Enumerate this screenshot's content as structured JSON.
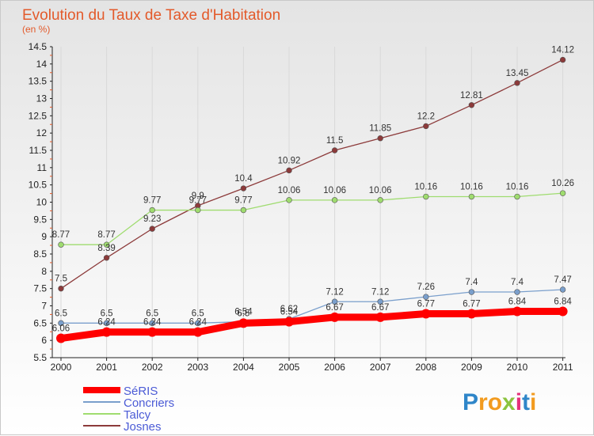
{
  "chart_data": {
    "type": "line",
    "title": "Evolution du Taux de Taxe d'Habitation",
    "subtitle": "(en %)",
    "xlabel": "",
    "ylabel": "",
    "x": [
      "2000",
      "2001",
      "2002",
      "2003",
      "2004",
      "2005",
      "2006",
      "2007",
      "2008",
      "2009",
      "2010",
      "2011"
    ],
    "ylim": [
      5.5,
      14.5
    ],
    "yticks": [
      "5.5",
      "6",
      "6.5",
      "7",
      "7.5",
      "8",
      "8.5",
      "9",
      "9.5",
      "10",
      "10.5",
      "11",
      "11.5",
      "12",
      "12.5",
      "13",
      "13.5",
      "14",
      "14.5"
    ],
    "series": [
      {
        "name": "SéRIS",
        "color": "#ff0000",
        "values": [
          6.06,
          6.24,
          6.24,
          6.24,
          6.5,
          6.54,
          6.67,
          6.67,
          6.77,
          6.77,
          6.84,
          6.84
        ],
        "labels": [
          "6.06",
          "6.24",
          "6.24",
          "6.24",
          "6.5",
          "6.54",
          "6.67",
          "6.67",
          "6.77",
          "6.77",
          "6.84",
          "6.84"
        ]
      },
      {
        "name": "Concriers",
        "color": "#7a9fcc",
        "values": [
          6.5,
          6.5,
          6.5,
          6.5,
          6.54,
          6.62,
          7.12,
          7.12,
          7.26,
          7.4,
          7.4,
          7.47
        ],
        "labels": [
          "6.5",
          "6.5",
          "6.5",
          "6.5",
          "6.54",
          "6.62",
          "7.12",
          "7.12",
          "7.26",
          "7.4",
          "7.4",
          "7.47"
        ]
      },
      {
        "name": "Talcy",
        "color": "#9fdc6f",
        "values": [
          8.77,
          8.77,
          9.77,
          9.77,
          9.77,
          10.06,
          10.06,
          10.06,
          10.16,
          10.16,
          10.16,
          10.26
        ],
        "labels": [
          "8.77",
          "8.77",
          "9.77",
          "9.77",
          "9.77",
          "10.06",
          "10.06",
          "10.06",
          "10.16",
          "10.16",
          "10.16",
          "10.26"
        ]
      },
      {
        "name": "Josnes",
        "color": "#8c3a3a",
        "values": [
          7.5,
          8.39,
          9.23,
          9.9,
          10.4,
          10.92,
          11.5,
          11.85,
          12.2,
          12.81,
          13.45,
          14.12
        ],
        "labels": [
          "7.5",
          "8.39",
          "9.23",
          "9.9",
          "10.4",
          "10.92",
          "11.5",
          "11.85",
          "12.2",
          "12.81",
          "13.45",
          "14.12"
        ]
      }
    ],
    "legend_position": "bottom-left"
  },
  "logo": {
    "text": "Proxiti"
  }
}
